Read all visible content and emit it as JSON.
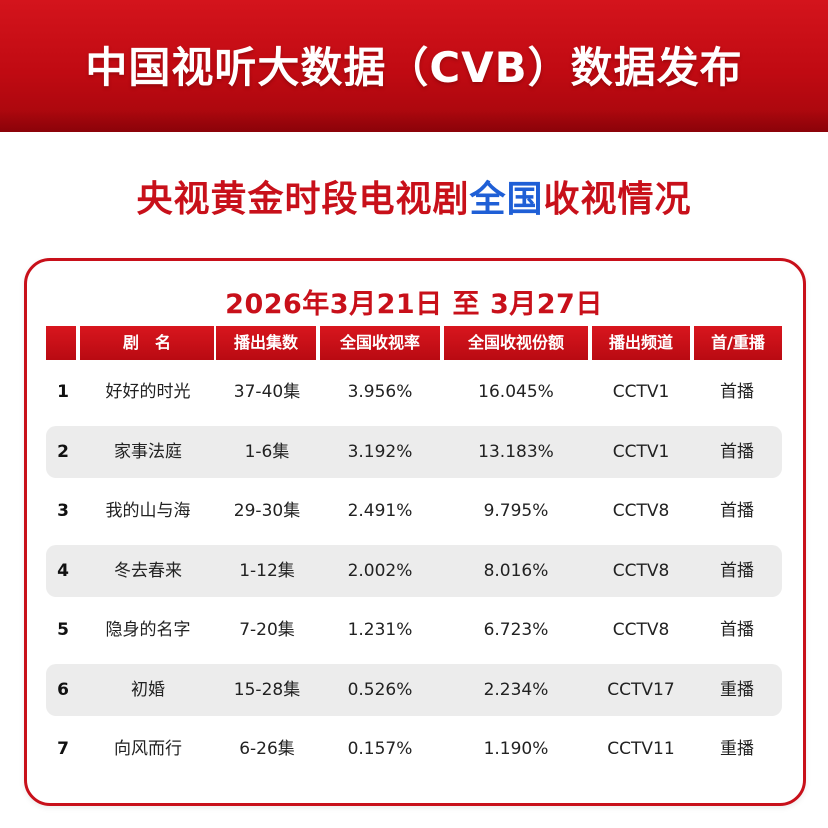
{
  "header": {
    "title": "中国视听大数据（CVB）数据发布"
  },
  "subtitle": {
    "part1": "央视黄金时段电视剧",
    "accent": "全国",
    "part2": "收视情况"
  },
  "date_range": "2026年3月21日 至 3月27日",
  "columns": [
    "剧　名",
    "播出集数",
    "全国收视率",
    "全国收视份额",
    "播出频道",
    "首/重播"
  ],
  "rows": [
    {
      "rank": "1",
      "title": "好好的时光",
      "episodes": "37-40集",
      "rating": "3.956%",
      "share": "16.045%",
      "channel": "CCTV1",
      "type": "首播"
    },
    {
      "rank": "2",
      "title": "家事法庭",
      "episodes": "1-6集",
      "rating": "3.192%",
      "share": "13.183%",
      "channel": "CCTV1",
      "type": "首播"
    },
    {
      "rank": "3",
      "title": "我的山与海",
      "episodes": "29-30集",
      "rating": "2.491%",
      "share": "9.795%",
      "channel": "CCTV8",
      "type": "首播"
    },
    {
      "rank": "4",
      "title": "冬去春来",
      "episodes": "1-12集",
      "rating": "2.002%",
      "share": "8.016%",
      "channel": "CCTV8",
      "type": "首播"
    },
    {
      "rank": "5",
      "title": "隐身的名字",
      "episodes": "7-20集",
      "rating": "1.231%",
      "share": "6.723%",
      "channel": "CCTV8",
      "type": "首播"
    },
    {
      "rank": "6",
      "title": "初婚",
      "episodes": "15-28集",
      "rating": "0.526%",
      "share": "2.234%",
      "channel": "CCTV17",
      "type": "重播"
    },
    {
      "rank": "7",
      "title": "向风而行",
      "episodes": "6-26集",
      "rating": "0.157%",
      "share": "1.190%",
      "channel": "CCTV11",
      "type": "重播"
    }
  ],
  "colors": {
    "brand_red": "#c8101a",
    "accent_blue": "#1f5fd6",
    "row_shade": "#ececec"
  }
}
